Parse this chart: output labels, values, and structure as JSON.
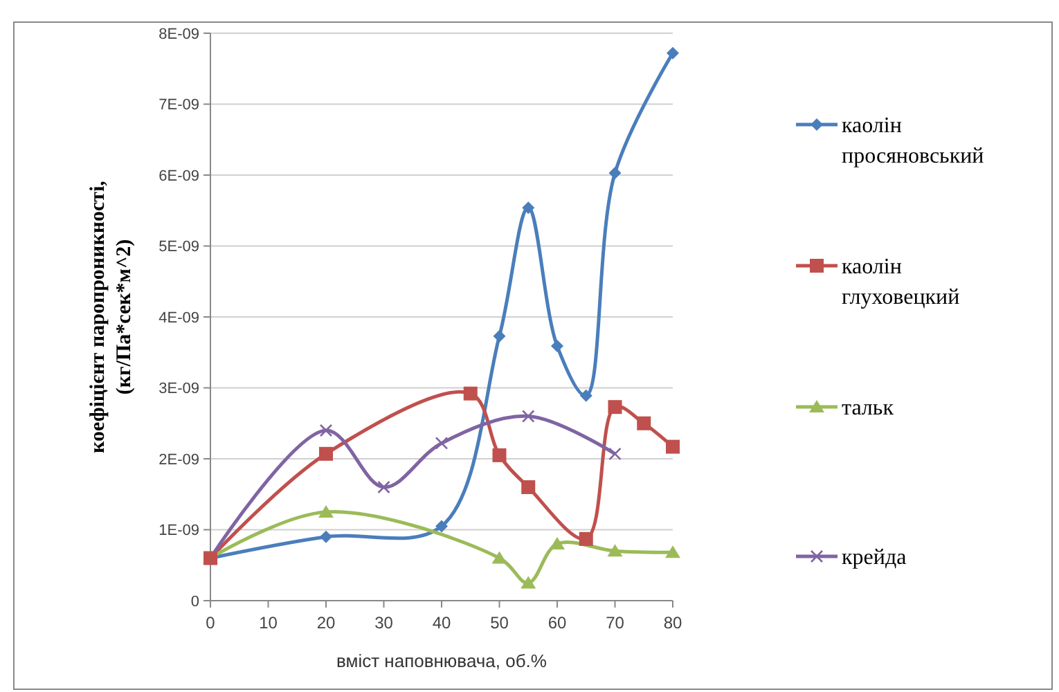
{
  "chart_data": {
    "type": "line",
    "xlabel": "вміст наповнювача, об.%",
    "ylabel": "коефіцієнт паропроникності,\n(кг/Па*сек*м^2)",
    "xlim": [
      0,
      80
    ],
    "xticks": [
      0,
      10,
      20,
      30,
      40,
      50,
      60,
      70,
      80
    ],
    "ylim": [
      0,
      8e-09
    ],
    "yticks": [
      0,
      {
        "value": 1e-09,
        "label": "1E-09"
      },
      {
        "value": 2e-09,
        "label": "2E-09"
      },
      {
        "value": 3e-09,
        "label": "3E-09"
      },
      {
        "value": 4e-09,
        "label": "4E-09"
      },
      {
        "value": 5e-09,
        "label": "5E-09"
      },
      {
        "value": 6e-09,
        "label": "6E-09"
      },
      {
        "value": 7e-09,
        "label": "7E-09"
      },
      {
        "value": 8e-09,
        "label": "8E-09"
      }
    ],
    "grid": "y",
    "legend": "right",
    "series": [
      {
        "name": "каолін просяновський",
        "color": "#4a7ebb",
        "marker": "diamond",
        "x": [
          0,
          20,
          40,
          50,
          55,
          60,
          65,
          70,
          80
        ],
        "values": [
          6e-10,
          9e-10,
          1.05e-09,
          3.73e-09,
          5.54e-09,
          3.59e-09,
          2.89e-09,
          6.03e-09,
          7.72e-09
        ]
      },
      {
        "name": "каолін глуховецкий",
        "color": "#c0504d",
        "marker": "square",
        "x": [
          0,
          20,
          45,
          50,
          55,
          65,
          70,
          75,
          80
        ],
        "values": [
          6e-10,
          2.07e-09,
          2.92e-09,
          2.05e-09,
          1.6e-09,
          8.7e-10,
          2.73e-09,
          2.5e-09,
          2.17e-09
        ]
      },
      {
        "name": "тальк",
        "color": "#9bbb59",
        "marker": "triangle",
        "x": [
          0,
          20,
          50,
          55,
          60,
          70,
          80
        ],
        "values": [
          6e-10,
          1.25e-09,
          6e-10,
          2.5e-10,
          8e-10,
          7e-10,
          6.8e-10
        ]
      },
      {
        "name": "крейда",
        "color": "#8064a2",
        "marker": "cross",
        "x": [
          0,
          20,
          30,
          40,
          55,
          70
        ],
        "values": [
          6e-10,
          2.4e-09,
          1.6e-09,
          2.22e-09,
          2.6e-09,
          2.07e-09
        ]
      }
    ]
  }
}
